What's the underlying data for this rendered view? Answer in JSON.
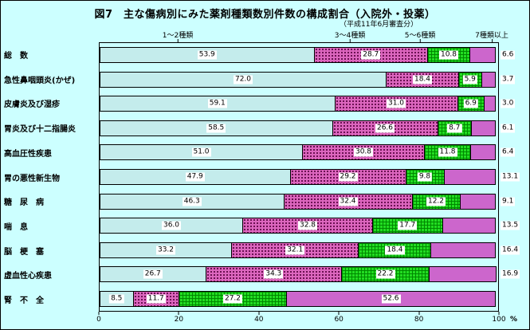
{
  "title": "図7　主な傷病別にみた薬剤種類数別件数の構成割合（入院外・投薬）",
  "subtitle": "（平成11年6月審査分）",
  "chart_data": {
    "type": "bar",
    "stacked": true,
    "orientation": "horizontal",
    "title": "図7　主な傷病別にみた薬剤種類数別件数の構成割合（入院外・投薬）",
    "subtitle": "（平成11年6月審査分）",
    "categories": [
      "総　数",
      "急性鼻咽頭炎(かぜ)",
      "皮膚炎及び湿疹",
      "胃炎及び十二指腸炎",
      "高血圧性疾患",
      "胃の悪性新生物",
      "糖　尿　病",
      "喘　息",
      "脳　梗　塞",
      "虚血性心疾患",
      "腎　不　全"
    ],
    "series": [
      {
        "name": "1～2種類",
        "values": [
          53.9,
          72.0,
          59.1,
          58.5,
          51.0,
          47.9,
          46.3,
          36.0,
          33.2,
          26.7,
          8.5
        ]
      },
      {
        "name": "3～4種類",
        "values": [
          28.7,
          18.4,
          31.0,
          26.6,
          30.8,
          29.2,
          32.4,
          32.8,
          32.1,
          34.3,
          11.7
        ]
      },
      {
        "name": "5～6種類",
        "values": [
          10.8,
          5.9,
          6.9,
          8.7,
          11.8,
          9.8,
          12.2,
          17.7,
          18.4,
          22.2,
          27.2
        ]
      },
      {
        "name": "7種類以上",
        "values": [
          6.6,
          3.7,
          3.0,
          6.1,
          6.4,
          13.1,
          9.1,
          13.5,
          16.4,
          16.9,
          52.6
        ]
      }
    ],
    "x_ticks": [
      0,
      20,
      40,
      60,
      80,
      100
    ],
    "x_unit": "%",
    "xlim": [
      0,
      100
    ],
    "legend_position": "top",
    "grid": false,
    "colors": {
      "series1": "#C4ECEC",
      "series2": "#DC66BE",
      "series3": "#22DD22",
      "series4": "#CC66CC",
      "background": "#CCFFFF"
    }
  }
}
